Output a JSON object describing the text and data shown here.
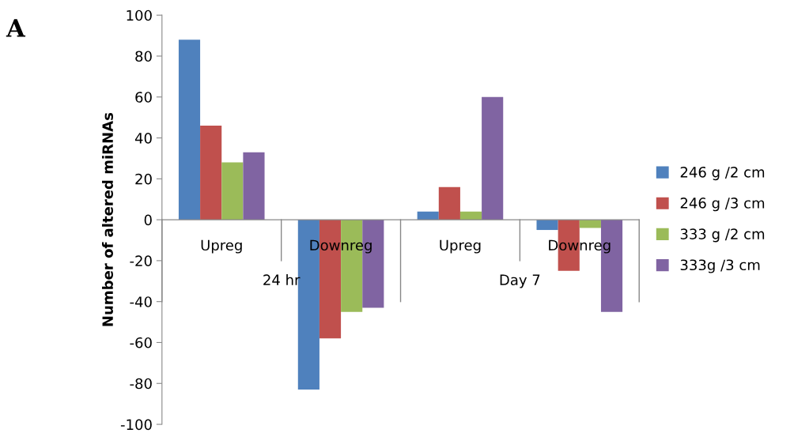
{
  "chart_data": {
    "type": "bar",
    "ylabel": "Number of altered miRNAs",
    "categories": [
      "Upreg",
      "Downreg",
      "Upreg",
      "Downreg"
    ],
    "series": [
      {
        "name": "246 g /2 cm",
        "color": "#4f81bd",
        "values": [
          88,
          -83,
          4,
          -5
        ]
      },
      {
        "name": "246 g /3 cm",
        "color": "#c0504d",
        "values": [
          46,
          -58,
          16,
          -25
        ]
      },
      {
        "name": "333 g /2 cm",
        "color": "#9bbb59",
        "values": [
          28,
          -45,
          4,
          -4
        ]
      },
      {
        "name": "333g /3 cm",
        "color": "#8064a2",
        "values": [
          33,
          -43,
          60,
          -45
        ]
      }
    ],
    "ylim": [
      -100,
      100
    ],
    "yticks": [
      -100,
      -80,
      -60,
      -40,
      -20,
      0,
      20,
      40,
      60,
      80,
      100
    ],
    "grid": false,
    "legend": "right",
    "annotations": [
      "A",
      "24 hr",
      "Day 7"
    ]
  }
}
